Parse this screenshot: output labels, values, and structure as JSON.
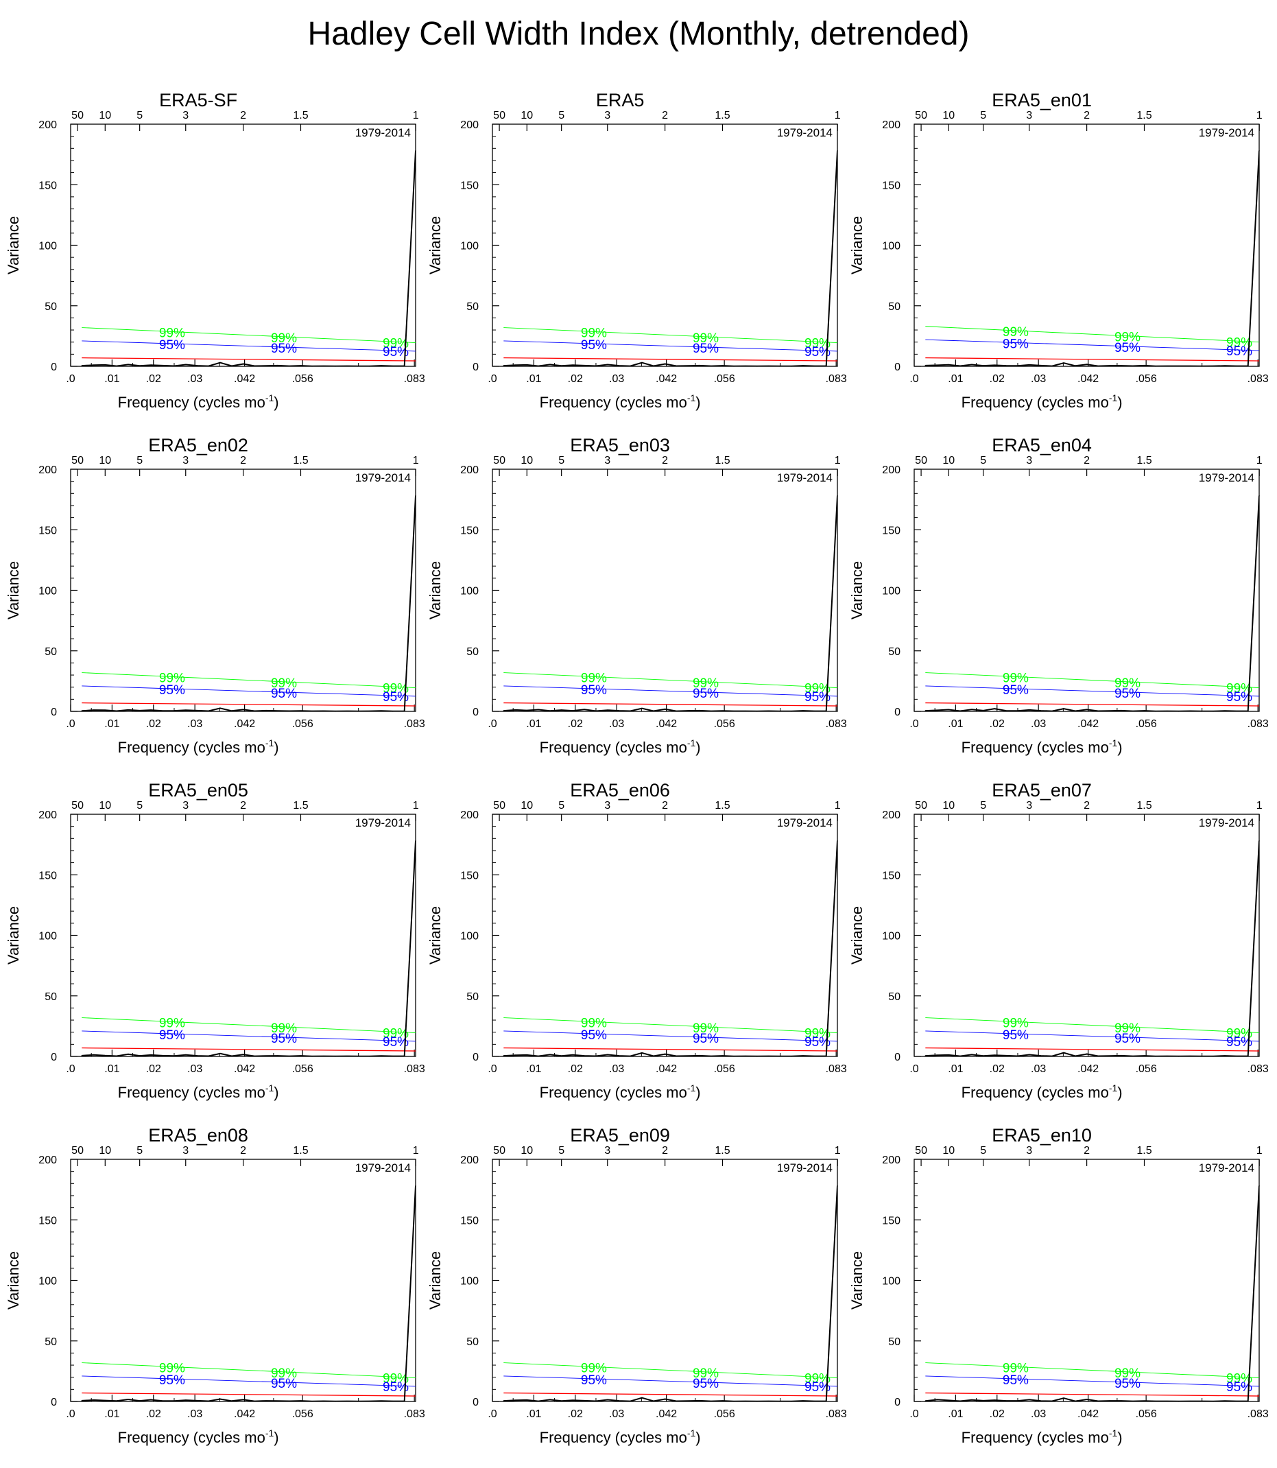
{
  "title": "Hadley Cell Width Index (Monthly, detrended)",
  "colors": {
    "spectrum": "#000000",
    "red_noise": "#ff0000",
    "ci95": "#0000ff",
    "ci99": "#00ff00"
  },
  "shared": {
    "period_label": "1979-2014",
    "xlabel": "Frequency (cycles mo",
    "xlabel_sup": "-1",
    "xlabel_close": ")",
    "ylabel": "Variance",
    "ci99_label": "99%",
    "ci95_label": "95%",
    "x_ticks": [
      0.0,
      0.01,
      0.02,
      0.03,
      0.042,
      0.056,
      0.083
    ],
    "x_tick_labels": [
      ".0",
      ".01",
      ".02",
      ".03",
      ".042",
      ".056",
      ".083"
    ],
    "x_minor_ticks": [
      0.005,
      0.015,
      0.025,
      0.036,
      0.049,
      0.0695
    ],
    "top_ticks": [
      0.00167,
      0.00833,
      0.01667,
      0.02778,
      0.04167,
      0.05556,
      0.08333
    ],
    "top_tick_labels": [
      "50",
      "10",
      "5",
      "3",
      "2",
      "1.5",
      "1"
    ],
    "y_ticks": [
      0,
      50,
      100,
      150,
      200
    ],
    "y_tick_labels": [
      "0",
      "50",
      "100",
      "150",
      "200"
    ],
    "y_minor_step": 10,
    "xlim": [
      0,
      0.0833
    ],
    "ylim": [
      0,
      200
    ],
    "ci_label_positions": [
      0.0245,
      0.0515,
      0.0785
    ]
  },
  "chart_data": [
    {
      "type": "line",
      "title": "ERA5-SF",
      "red_noise": [
        7,
        4.5
      ],
      "ci95": [
        21,
        12.5
      ],
      "ci99": [
        32,
        19.5
      ],
      "x": [
        0.0027,
        0.0056,
        0.0083,
        0.0111,
        0.0139,
        0.0167,
        0.0194,
        0.0222,
        0.025,
        0.0278,
        0.0306,
        0.0333,
        0.0361,
        0.0389,
        0.0417,
        0.0444,
        0.0472,
        0.05,
        0.0528,
        0.0556,
        0.0583,
        0.0611,
        0.0639,
        0.0667,
        0.0694,
        0.0722,
        0.075,
        0.0778,
        0.0806,
        0.0833
      ],
      "values": [
        0.5,
        1.0,
        1.2,
        0.2,
        1.5,
        0.4,
        1.0,
        0.6,
        0.3,
        1.4,
        0.5,
        0.2,
        3.0,
        0.3,
        2.0,
        0.3,
        0.4,
        0.6,
        0.2,
        0.5,
        0.1,
        0.2,
        0.1,
        0.2,
        0.1,
        0.1,
        0.5,
        0.2,
        0.3,
        178
      ]
    },
    {
      "type": "line",
      "title": "ERA5",
      "red_noise": [
        7,
        4.5
      ],
      "ci95": [
        21,
        12.5
      ],
      "ci99": [
        32,
        19.5
      ],
      "x": [
        0.0027,
        0.0056,
        0.0083,
        0.0111,
        0.0139,
        0.0167,
        0.0194,
        0.0222,
        0.025,
        0.0278,
        0.0306,
        0.0333,
        0.0361,
        0.0389,
        0.0417,
        0.0444,
        0.0472,
        0.05,
        0.0528,
        0.0556,
        0.0583,
        0.0611,
        0.0639,
        0.0667,
        0.0694,
        0.0722,
        0.075,
        0.0778,
        0.0806,
        0.0833
      ],
      "values": [
        0.5,
        1.0,
        1.2,
        0.2,
        1.5,
        0.4,
        1.0,
        0.6,
        0.3,
        1.4,
        0.5,
        0.2,
        3.0,
        0.3,
        2.0,
        0.3,
        0.4,
        0.6,
        0.2,
        0.5,
        0.1,
        0.2,
        0.1,
        0.2,
        0.1,
        0.1,
        0.5,
        0.2,
        0.3,
        178
      ]
    },
    {
      "type": "line",
      "title": "ERA5_en01",
      "red_noise": [
        7,
        4.5
      ],
      "ci95": [
        22,
        13
      ],
      "ci99": [
        33,
        20
      ],
      "x": [
        0.0027,
        0.0056,
        0.0083,
        0.0111,
        0.0139,
        0.0167,
        0.0194,
        0.0222,
        0.025,
        0.0278,
        0.0306,
        0.0333,
        0.0361,
        0.0389,
        0.0417,
        0.0444,
        0.0472,
        0.05,
        0.0528,
        0.0556,
        0.0583,
        0.0611,
        0.0639,
        0.0667,
        0.0694,
        0.0722,
        0.075,
        0.0778,
        0.0806,
        0.0833
      ],
      "values": [
        0.6,
        0.9,
        1.3,
        0.3,
        1.4,
        0.5,
        0.9,
        0.5,
        0.4,
        1.2,
        0.6,
        0.2,
        2.8,
        0.4,
        1.6,
        0.2,
        0.5,
        0.5,
        0.3,
        0.6,
        0.1,
        0.2,
        0.2,
        0.2,
        0.1,
        0.2,
        0.4,
        0.2,
        0.3,
        178
      ]
    },
    {
      "type": "line",
      "title": "ERA5_en02",
      "red_noise": [
        7,
        4.5
      ],
      "ci95": [
        21,
        12.5
      ],
      "ci99": [
        32,
        19.5
      ],
      "x": [
        0.0027,
        0.0056,
        0.0083,
        0.0111,
        0.0139,
        0.0167,
        0.0194,
        0.0222,
        0.025,
        0.0278,
        0.0306,
        0.0333,
        0.0361,
        0.0389,
        0.0417,
        0.0444,
        0.0472,
        0.05,
        0.0528,
        0.0556,
        0.0583,
        0.0611,
        0.0639,
        0.0667,
        0.0694,
        0.0722,
        0.075,
        0.0778,
        0.0806,
        0.0833
      ],
      "values": [
        0.4,
        1.1,
        1.0,
        0.3,
        1.2,
        0.6,
        1.1,
        0.4,
        0.5,
        1.0,
        0.6,
        0.3,
        2.6,
        0.4,
        1.5,
        0.3,
        0.6,
        0.4,
        0.3,
        0.4,
        0.2,
        0.3,
        0.1,
        0.2,
        0.1,
        0.2,
        0.4,
        0.1,
        0.2,
        178
      ]
    },
    {
      "type": "line",
      "title": "ERA5_en03",
      "red_noise": [
        7,
        4.5
      ],
      "ci95": [
        21,
        12.5
      ],
      "ci99": [
        32,
        19.5
      ],
      "x": [
        0.0027,
        0.0056,
        0.0083,
        0.0111,
        0.0139,
        0.0167,
        0.0194,
        0.0222,
        0.025,
        0.0278,
        0.0306,
        0.0333,
        0.0361,
        0.0389,
        0.0417,
        0.0444,
        0.0472,
        0.05,
        0.0528,
        0.0556,
        0.0583,
        0.0611,
        0.0639,
        0.0667,
        0.0694,
        0.0722,
        0.075,
        0.0778,
        0.0806,
        0.0833
      ],
      "values": [
        0.5,
        1.2,
        0.8,
        1.4,
        0.4,
        1.1,
        0.5,
        1.6,
        0.3,
        1.0,
        0.5,
        0.3,
        2.5,
        0.3,
        1.8,
        0.2,
        0.5,
        0.6,
        0.2,
        0.4,
        0.2,
        0.2,
        0.1,
        0.3,
        0.1,
        0.1,
        0.5,
        0.2,
        0.3,
        178
      ]
    },
    {
      "type": "line",
      "title": "ERA5_en04",
      "red_noise": [
        7,
        4.5
      ],
      "ci95": [
        21,
        12.5
      ],
      "ci99": [
        32,
        19.5
      ],
      "x": [
        0.0027,
        0.0056,
        0.0083,
        0.0111,
        0.0139,
        0.0167,
        0.0194,
        0.0222,
        0.025,
        0.0278,
        0.0306,
        0.0333,
        0.0361,
        0.0389,
        0.0417,
        0.0444,
        0.0472,
        0.05,
        0.0528,
        0.0556,
        0.0583,
        0.0611,
        0.0639,
        0.0667,
        0.0694,
        0.0722,
        0.075,
        0.0778,
        0.0806,
        0.0833
      ],
      "values": [
        0.5,
        0.9,
        1.4,
        0.3,
        1.6,
        0.6,
        2.2,
        0.5,
        0.4,
        1.2,
        0.5,
        0.2,
        2.2,
        0.3,
        1.5,
        0.3,
        0.4,
        0.6,
        0.2,
        0.5,
        0.1,
        0.2,
        0.1,
        0.3,
        0.1,
        0.1,
        0.4,
        0.2,
        0.3,
        178
      ]
    },
    {
      "type": "line",
      "title": "ERA5_en05",
      "red_noise": [
        7,
        4.5
      ],
      "ci95": [
        21,
        12.5
      ],
      "ci99": [
        32,
        19.5
      ],
      "x": [
        0.0027,
        0.0056,
        0.0083,
        0.0111,
        0.0139,
        0.0167,
        0.0194,
        0.0222,
        0.025,
        0.0278,
        0.0306,
        0.0333,
        0.0361,
        0.0389,
        0.0417,
        0.0444,
        0.0472,
        0.05,
        0.0528,
        0.0556,
        0.0583,
        0.0611,
        0.0639,
        0.0667,
        0.0694,
        0.0722,
        0.075,
        0.0778,
        0.0806,
        0.0833
      ],
      "values": [
        0.6,
        1.3,
        0.7,
        0.3,
        1.8,
        0.5,
        1.2,
        0.6,
        0.4,
        1.3,
        0.5,
        0.3,
        2.4,
        0.3,
        1.6,
        0.2,
        0.4,
        0.5,
        0.2,
        0.5,
        0.1,
        0.2,
        0.1,
        0.2,
        0.1,
        0.1,
        0.4,
        0.2,
        0.2,
        178
      ]
    },
    {
      "type": "line",
      "title": "ERA5_en06",
      "red_noise": [
        7,
        4.5
      ],
      "ci95": [
        21,
        12.5
      ],
      "ci99": [
        32,
        19.5
      ],
      "x": [
        0.0027,
        0.0056,
        0.0083,
        0.0111,
        0.0139,
        0.0167,
        0.0194,
        0.0222,
        0.025,
        0.0278,
        0.0306,
        0.0333,
        0.0361,
        0.0389,
        0.0417,
        0.0444,
        0.0472,
        0.05,
        0.0528,
        0.0556,
        0.0583,
        0.0611,
        0.0639,
        0.0667,
        0.0694,
        0.0722,
        0.075,
        0.0778,
        0.0806,
        0.0833
      ],
      "values": [
        0.5,
        1.0,
        1.2,
        0.2,
        1.5,
        0.4,
        1.3,
        0.5,
        0.3,
        1.4,
        0.5,
        0.2,
        2.9,
        0.3,
        1.9,
        0.3,
        0.4,
        0.6,
        0.2,
        0.5,
        0.1,
        0.2,
        0.1,
        0.2,
        0.1,
        0.1,
        0.5,
        0.2,
        0.3,
        178
      ]
    },
    {
      "type": "line",
      "title": "ERA5_en07",
      "red_noise": [
        7,
        4.5
      ],
      "ci95": [
        21,
        12.5
      ],
      "ci99": [
        32,
        19.5
      ],
      "x": [
        0.0027,
        0.0056,
        0.0083,
        0.0111,
        0.0139,
        0.0167,
        0.0194,
        0.0222,
        0.025,
        0.0278,
        0.0306,
        0.0333,
        0.0361,
        0.0389,
        0.0417,
        0.0444,
        0.0472,
        0.05,
        0.0528,
        0.0556,
        0.0583,
        0.0611,
        0.0639,
        0.0667,
        0.0694,
        0.0722,
        0.075,
        0.0778,
        0.0806,
        0.0833
      ],
      "values": [
        0.5,
        1.0,
        1.2,
        0.2,
        1.5,
        0.4,
        1.0,
        0.6,
        0.3,
        1.4,
        0.5,
        0.2,
        3.0,
        0.3,
        2.0,
        0.3,
        0.4,
        0.6,
        0.2,
        0.5,
        0.1,
        0.2,
        0.1,
        0.2,
        0.1,
        0.1,
        0.5,
        0.2,
        0.3,
        178
      ]
    },
    {
      "type": "line",
      "title": "ERA5_en08",
      "red_noise": [
        7,
        4.5
      ],
      "ci95": [
        21,
        12.5
      ],
      "ci99": [
        32,
        19.5
      ],
      "x": [
        0.0027,
        0.0056,
        0.0083,
        0.0111,
        0.0139,
        0.0167,
        0.0194,
        0.0222,
        0.025,
        0.0278,
        0.0306,
        0.0333,
        0.0361,
        0.0389,
        0.0417,
        0.0444,
        0.0472,
        0.05,
        0.0528,
        0.0556,
        0.0583,
        0.0611,
        0.0639,
        0.0667,
        0.0694,
        0.0722,
        0.075,
        0.0778,
        0.0806,
        0.0833
      ],
      "values": [
        0.6,
        1.2,
        0.8,
        0.4,
        1.7,
        0.5,
        1.4,
        0.4,
        0.4,
        1.1,
        0.6,
        0.3,
        2.0,
        0.4,
        1.5,
        0.2,
        0.5,
        0.4,
        0.3,
        0.5,
        0.1,
        0.3,
        0.1,
        0.2,
        0.1,
        0.2,
        0.4,
        0.2,
        0.2,
        178
      ]
    },
    {
      "type": "line",
      "title": "ERA5_en09",
      "red_noise": [
        7,
        4.5
      ],
      "ci95": [
        21,
        12.5
      ],
      "ci99": [
        32,
        19.5
      ],
      "x": [
        0.0027,
        0.0056,
        0.0083,
        0.0111,
        0.0139,
        0.0167,
        0.0194,
        0.0222,
        0.025,
        0.0278,
        0.0306,
        0.0333,
        0.0361,
        0.0389,
        0.0417,
        0.0444,
        0.0472,
        0.05,
        0.0528,
        0.0556,
        0.0583,
        0.0611,
        0.0639,
        0.0667,
        0.0694,
        0.0722,
        0.075,
        0.0778,
        0.0806,
        0.0833
      ],
      "values": [
        0.5,
        1.0,
        1.2,
        0.2,
        1.5,
        0.4,
        1.0,
        0.6,
        0.3,
        1.4,
        0.5,
        0.2,
        3.0,
        0.3,
        2.0,
        0.3,
        0.4,
        0.6,
        0.2,
        0.5,
        0.1,
        0.2,
        0.1,
        0.2,
        0.1,
        0.1,
        0.5,
        0.2,
        0.3,
        178
      ]
    },
    {
      "type": "line",
      "title": "ERA5_en10",
      "red_noise": [
        7,
        4.5
      ],
      "ci95": [
        21,
        12.5
      ],
      "ci99": [
        32,
        19.5
      ],
      "x": [
        0.0027,
        0.0056,
        0.0083,
        0.0111,
        0.0139,
        0.0167,
        0.0194,
        0.0222,
        0.025,
        0.0278,
        0.0306,
        0.0333,
        0.0361,
        0.0389,
        0.0417,
        0.0444,
        0.0472,
        0.05,
        0.0528,
        0.0556,
        0.0583,
        0.0611,
        0.0639,
        0.0667,
        0.0694,
        0.0722,
        0.075,
        0.0778,
        0.0806,
        0.0833
      ],
      "values": [
        0.4,
        1.5,
        0.9,
        0.3,
        1.3,
        0.6,
        1.1,
        0.5,
        0.5,
        1.5,
        0.4,
        0.3,
        2.7,
        0.2,
        1.7,
        0.3,
        0.5,
        0.5,
        0.2,
        0.4,
        0.2,
        0.2,
        0.1,
        0.2,
        0.2,
        0.1,
        0.4,
        0.2,
        0.3,
        178
      ]
    }
  ]
}
